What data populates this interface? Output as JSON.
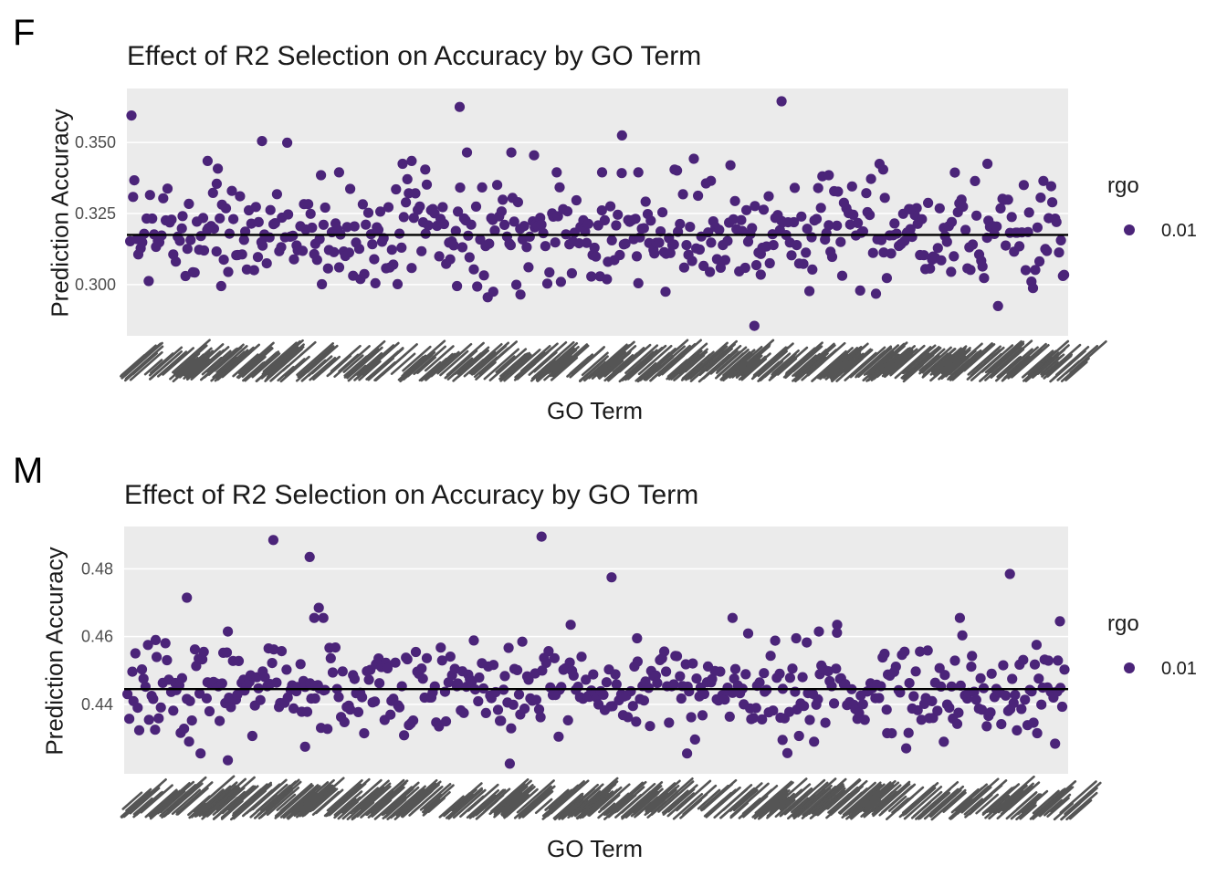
{
  "chart_data": [
    {
      "type": "scatter",
      "panel_label": "F",
      "title": "Effect of R2 Selection on Accuracy by GO Term",
      "xlabel": "GO Term",
      "ylabel": "Prediction Accuracy",
      "yticks": [
        0.3,
        0.325,
        0.35
      ],
      "ytick_labels": [
        "0.300",
        "0.325",
        "0.350"
      ],
      "ylim": [
        0.282,
        0.369
      ],
      "reference_line": 0.3175,
      "legend": {
        "title": "rgo",
        "entries": [
          {
            "label": "0.01",
            "color": "#4b2479"
          }
        ]
      },
      "point_color": "#4b2479",
      "panel_background": "#ebebeb",
      "point_count": 480,
      "mean": 0.318,
      "sd": 0.0085,
      "seed": 7,
      "highlights": [
        [
          1,
          0.3595
        ],
        [
          363,
          0.3625
        ],
        [
          371,
          0.3465
        ],
        [
          542,
          0.3525
        ],
        [
          688,
          0.2855
        ],
        [
          718,
          0.3645
        ],
        [
          85,
          0.3435
        ],
        [
          95,
          0.3355
        ],
        [
          145,
          0.3505
        ],
        [
          210,
          0.3385
        ],
        [
          230,
          0.3395
        ],
        [
          300,
          0.3425
        ],
        [
          310,
          0.3435
        ],
        [
          325,
          0.3405
        ],
        [
          420,
          0.3465
        ],
        [
          445,
          0.3455
        ],
        [
          470,
          0.3395
        ],
        [
          520,
          0.3395
        ],
        [
          560,
          0.3395
        ],
        [
          600,
          0.3405
        ],
        [
          640,
          0.3365
        ],
        [
          770,
          0.3385
        ],
        [
          830,
          0.3405
        ],
        [
          945,
          0.3425
        ],
        [
          860,
          0.3265
        ],
        [
          560,
          0.3005
        ],
        [
          430,
          0.2965
        ],
        [
          400,
          0.2975
        ],
        [
          360,
          0.2995
        ],
        [
          270,
          0.3005
        ],
        [
          100,
          0.2995
        ],
        [
          905,
          0.3045
        ],
        [
          695,
          0.3035
        ],
        [
          590,
          0.2975
        ]
      ]
    },
    {
      "type": "scatter",
      "panel_label": "M",
      "title": "Effect of R2 Selection on Accuracy by GO Term",
      "xlabel": "GO Term",
      "ylabel": "Prediction Accuracy",
      "yticks": [
        0.44,
        0.46,
        0.48
      ],
      "ytick_labels": [
        "0.44",
        "0.46",
        "0.48"
      ],
      "ylim": [
        0.4195,
        0.4925
      ],
      "reference_line": 0.4445,
      "legend": {
        "title": "rgo",
        "entries": [
          {
            "label": "0.01",
            "color": "#4b2479"
          }
        ]
      },
      "point_color": "#4b2479",
      "panel_background": "#ebebeb",
      "point_count": 480,
      "mean": 0.4445,
      "sd": 0.0065,
      "seed": 13,
      "highlights": [
        [
          160,
          0.4885
        ],
        [
          200,
          0.4835
        ],
        [
          455,
          0.4895
        ],
        [
          532,
          0.4775
        ],
        [
          970,
          0.4785
        ],
        [
          65,
          0.4715
        ],
        [
          210,
          0.4685
        ],
        [
          205,
          0.4655
        ],
        [
          215,
          0.4655
        ],
        [
          487,
          0.4635
        ],
        [
          665,
          0.4655
        ],
        [
          760,
          0.4615
        ],
        [
          780,
          0.4635
        ],
        [
          915,
          0.4655
        ],
        [
          1025,
          0.4645
        ],
        [
          110,
          0.4615
        ],
        [
          560,
          0.4595
        ],
        [
          735,
          0.4595
        ],
        [
          420,
          0.4225
        ],
        [
          110,
          0.4235
        ],
        [
          80,
          0.4255
        ],
        [
          615,
          0.4255
        ],
        [
          720,
          0.4295
        ],
        [
          195,
          0.4275
        ],
        [
          30,
          0.4325
        ],
        [
          835,
          0.4315
        ],
        [
          1000,
          0.4315
        ]
      ]
    }
  ]
}
